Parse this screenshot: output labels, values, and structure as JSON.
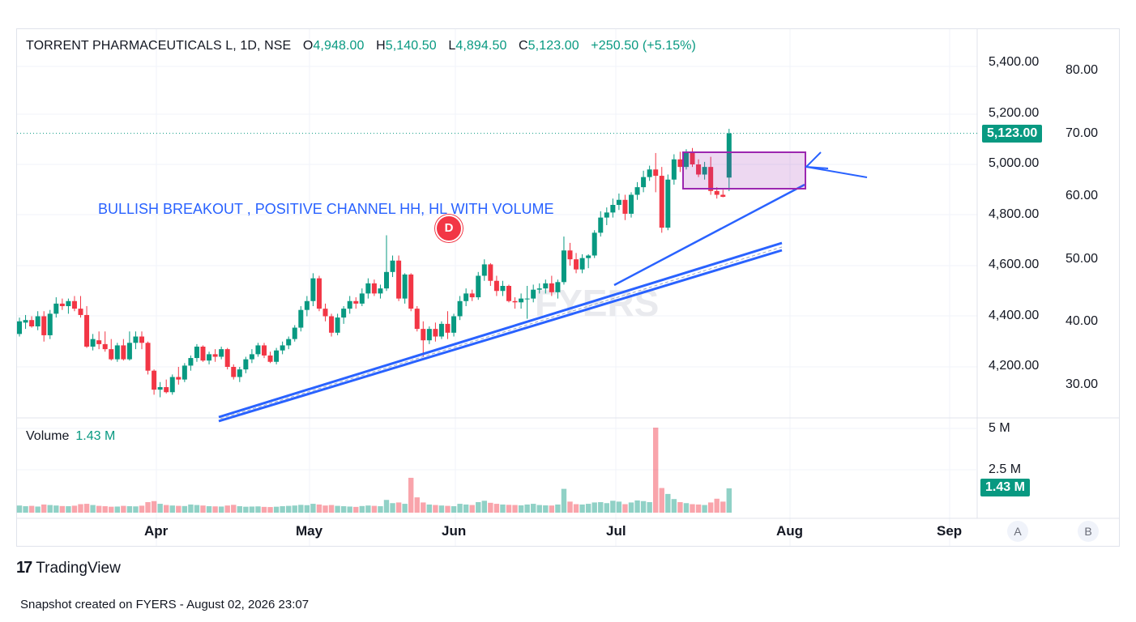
{
  "legend": {
    "symbol": "TORRENT PHARMACEUTICALS L, 1D, NSE",
    "open_label": "O",
    "open": "4,948.00",
    "high_label": "H",
    "high": "5,140.50",
    "low_label": "L",
    "low": "4,894.50",
    "close_label": "C",
    "close": "5,123.00",
    "change": "+250.50 (+5.15%)"
  },
  "volume_legend": {
    "label": "Volume",
    "value": "1.43 M"
  },
  "annotation": "BULLISH BREAKOUT , POSITIVE CHANNEL HH, HL WITH VOLUME",
  "marker": "D",
  "price_axis": [
    "5,400.00",
    "5,200.00",
    "5,000.00",
    "4,800.00",
    "4,600.00",
    "4,400.00",
    "4,200.00"
  ],
  "secondary_axis": [
    "80.00",
    "70.00",
    "60.00",
    "50.00",
    "40.00",
    "30.00"
  ],
  "volume_axis": [
    "5 M",
    "2.5 M"
  ],
  "last_price_tag": "5,123.00",
  "last_volume_tag": "1.43 M",
  "months": [
    "Apr",
    "May",
    "Jun",
    "Jul",
    "Aug",
    "Sep"
  ],
  "buttons": {
    "a": "A",
    "b": "B"
  },
  "watermark": "FYERS",
  "logo": {
    "mark": "17",
    "text": "TradingView"
  },
  "footer": "Snapshot created on FYERS - August 02, 2026 23:07",
  "colors": {
    "up": "#089981",
    "down": "#f23645",
    "drawing": "#2962ff",
    "box": "#9c27b0"
  },
  "chart_data": {
    "type": "candlestick",
    "title": "TORRENT PHARMACEUTICALS L, 1D, NSE",
    "ylim": [
      4130,
      5540
    ],
    "volume_ylim": [
      0,
      5400000
    ],
    "x_label_months": [
      "Apr",
      "May",
      "Jun",
      "Jul",
      "Aug",
      "Sep"
    ],
    "candles": [
      {
        "o": 4330,
        "h": 4395,
        "l": 4320,
        "c": 4380,
        "v": 420000
      },
      {
        "o": 4375,
        "h": 4405,
        "l": 4350,
        "c": 4385,
        "v": 380000
      },
      {
        "o": 4385,
        "h": 4400,
        "l": 4355,
        "c": 4360,
        "v": 400000
      },
      {
        "o": 4360,
        "h": 4420,
        "l": 4345,
        "c": 4400,
        "v": 360000
      },
      {
        "o": 4400,
        "h": 4420,
        "l": 4300,
        "c": 4325,
        "v": 480000
      },
      {
        "o": 4325,
        "h": 4425,
        "l": 4310,
        "c": 4410,
        "v": 450000
      },
      {
        "o": 4410,
        "h": 4475,
        "l": 4395,
        "c": 4450,
        "v": 420000
      },
      {
        "o": 4450,
        "h": 4470,
        "l": 4425,
        "c": 4440,
        "v": 390000
      },
      {
        "o": 4440,
        "h": 4470,
        "l": 4410,
        "c": 4460,
        "v": 380000
      },
      {
        "o": 4460,
        "h": 4480,
        "l": 4420,
        "c": 4430,
        "v": 410000
      },
      {
        "o": 4430,
        "h": 4480,
        "l": 4395,
        "c": 4405,
        "v": 500000
      },
      {
        "o": 4405,
        "h": 4440,
        "l": 4275,
        "c": 4280,
        "v": 520000
      },
      {
        "o": 4280,
        "h": 4330,
        "l": 4265,
        "c": 4310,
        "v": 450000
      },
      {
        "o": 4305,
        "h": 4340,
        "l": 4270,
        "c": 4290,
        "v": 400000
      },
      {
        "o": 4290,
        "h": 4340,
        "l": 4260,
        "c": 4270,
        "v": 380000
      },
      {
        "o": 4270,
        "h": 4310,
        "l": 4225,
        "c": 4230,
        "v": 350000
      },
      {
        "o": 4230,
        "h": 4295,
        "l": 4220,
        "c": 4285,
        "v": 360000
      },
      {
        "o": 4285,
        "h": 4310,
        "l": 4225,
        "c": 4230,
        "v": 400000
      },
      {
        "o": 4230,
        "h": 4340,
        "l": 4225,
        "c": 4295,
        "v": 380000
      },
      {
        "o": 4295,
        "h": 4340,
        "l": 4270,
        "c": 4320,
        "v": 370000
      },
      {
        "o": 4320,
        "h": 4340,
        "l": 4270,
        "c": 4295,
        "v": 410000
      },
      {
        "o": 4295,
        "h": 4300,
        "l": 4170,
        "c": 4185,
        "v": 620000
      },
      {
        "o": 4185,
        "h": 4190,
        "l": 4090,
        "c": 4110,
        "v": 680000
      },
      {
        "o": 4110,
        "h": 4140,
        "l": 4080,
        "c": 4120,
        "v": 520000
      },
      {
        "o": 4120,
        "h": 4150,
        "l": 4095,
        "c": 4100,
        "v": 450000
      },
      {
        "o": 4100,
        "h": 4170,
        "l": 4090,
        "c": 4160,
        "v": 420000
      },
      {
        "o": 4160,
        "h": 4200,
        "l": 4130,
        "c": 4150,
        "v": 400000
      },
      {
        "o": 4150,
        "h": 4215,
        "l": 4140,
        "c": 4205,
        "v": 390000
      },
      {
        "o": 4205,
        "h": 4245,
        "l": 4185,
        "c": 4235,
        "v": 480000
      },
      {
        "o": 4235,
        "h": 4290,
        "l": 4220,
        "c": 4280,
        "v": 450000
      },
      {
        "o": 4280,
        "h": 4285,
        "l": 4220,
        "c": 4225,
        "v": 420000
      },
      {
        "o": 4225,
        "h": 4260,
        "l": 4210,
        "c": 4250,
        "v": 380000
      },
      {
        "o": 4250,
        "h": 4270,
        "l": 4220,
        "c": 4240,
        "v": 370000
      },
      {
        "o": 4240,
        "h": 4280,
        "l": 4230,
        "c": 4270,
        "v": 360000
      },
      {
        "o": 4270,
        "h": 4275,
        "l": 4190,
        "c": 4200,
        "v": 420000
      },
      {
        "o": 4200,
        "h": 4210,
        "l": 4150,
        "c": 4160,
        "v": 460000
      },
      {
        "o": 4160,
        "h": 4200,
        "l": 4140,
        "c": 4190,
        "v": 380000
      },
      {
        "o": 4190,
        "h": 4240,
        "l": 4175,
        "c": 4230,
        "v": 350000
      },
      {
        "o": 4230,
        "h": 4270,
        "l": 4215,
        "c": 4250,
        "v": 360000
      },
      {
        "o": 4250,
        "h": 4295,
        "l": 4240,
        "c": 4285,
        "v": 370000
      },
      {
        "o": 4285,
        "h": 4295,
        "l": 4235,
        "c": 4245,
        "v": 340000
      },
      {
        "o": 4245,
        "h": 4260,
        "l": 4215,
        "c": 4220,
        "v": 330000
      },
      {
        "o": 4220,
        "h": 4275,
        "l": 4210,
        "c": 4265,
        "v": 350000
      },
      {
        "o": 4265,
        "h": 4300,
        "l": 4250,
        "c": 4285,
        "v": 380000
      },
      {
        "o": 4285,
        "h": 4320,
        "l": 4270,
        "c": 4310,
        "v": 400000
      },
      {
        "o": 4310,
        "h": 4365,
        "l": 4300,
        "c": 4355,
        "v": 420000
      },
      {
        "o": 4355,
        "h": 4440,
        "l": 4340,
        "c": 4425,
        "v": 460000
      },
      {
        "o": 4425,
        "h": 4480,
        "l": 4400,
        "c": 4460,
        "v": 440000
      },
      {
        "o": 4460,
        "h": 4570,
        "l": 4440,
        "c": 4550,
        "v": 520000
      },
      {
        "o": 4550,
        "h": 4560,
        "l": 4420,
        "c": 4430,
        "v": 480000
      },
      {
        "o": 4430,
        "h": 4450,
        "l": 4380,
        "c": 4400,
        "v": 420000
      },
      {
        "o": 4400,
        "h": 4410,
        "l": 4320,
        "c": 4335,
        "v": 450000
      },
      {
        "o": 4335,
        "h": 4410,
        "l": 4325,
        "c": 4395,
        "v": 400000
      },
      {
        "o": 4395,
        "h": 4440,
        "l": 4370,
        "c": 4430,
        "v": 380000
      },
      {
        "o": 4430,
        "h": 4480,
        "l": 4410,
        "c": 4460,
        "v": 360000
      },
      {
        "o": 4460,
        "h": 4475,
        "l": 4430,
        "c": 4450,
        "v": 340000
      },
      {
        "o": 4450,
        "h": 4510,
        "l": 4440,
        "c": 4490,
        "v": 390000
      },
      {
        "o": 4490,
        "h": 4550,
        "l": 4470,
        "c": 4530,
        "v": 420000
      },
      {
        "o": 4530,
        "h": 4545,
        "l": 4480,
        "c": 4490,
        "v": 400000
      },
      {
        "o": 4490,
        "h": 4525,
        "l": 4470,
        "c": 4510,
        "v": 380000
      },
      {
        "o": 4510,
        "h": 4720,
        "l": 4500,
        "c": 4575,
        "v": 750000
      },
      {
        "o": 4575,
        "h": 4640,
        "l": 4555,
        "c": 4620,
        "v": 560000
      },
      {
        "o": 4620,
        "h": 4640,
        "l": 4460,
        "c": 4470,
        "v": 600000
      },
      {
        "o": 4470,
        "h": 4570,
        "l": 4450,
        "c": 4565,
        "v": 520000
      },
      {
        "o": 4565,
        "h": 4570,
        "l": 4420,
        "c": 4430,
        "v": 2050000
      },
      {
        "o": 4430,
        "h": 4440,
        "l": 4340,
        "c": 4350,
        "v": 900000
      },
      {
        "o": 4350,
        "h": 4380,
        "l": 4240,
        "c": 4305,
        "v": 600000
      },
      {
        "o": 4305,
        "h": 4360,
        "l": 4290,
        "c": 4350,
        "v": 480000
      },
      {
        "o": 4350,
        "h": 4375,
        "l": 4300,
        "c": 4320,
        "v": 450000
      },
      {
        "o": 4320,
        "h": 4380,
        "l": 4310,
        "c": 4370,
        "v": 420000
      },
      {
        "o": 4370,
        "h": 4420,
        "l": 4310,
        "c": 4335,
        "v": 400000
      },
      {
        "o": 4335,
        "h": 4410,
        "l": 4320,
        "c": 4400,
        "v": 380000
      },
      {
        "o": 4400,
        "h": 4480,
        "l": 4385,
        "c": 4460,
        "v": 520000
      },
      {
        "o": 4460,
        "h": 4510,
        "l": 4440,
        "c": 4490,
        "v": 480000
      },
      {
        "o": 4490,
        "h": 4505,
        "l": 4460,
        "c": 4475,
        "v": 450000
      },
      {
        "o": 4475,
        "h": 4575,
        "l": 4465,
        "c": 4560,
        "v": 620000
      },
      {
        "o": 4560,
        "h": 4625,
        "l": 4540,
        "c": 4605,
        "v": 700000
      },
      {
        "o": 4605,
        "h": 4610,
        "l": 4520,
        "c": 4540,
        "v": 580000
      },
      {
        "o": 4540,
        "h": 4560,
        "l": 4480,
        "c": 4500,
        "v": 520000
      },
      {
        "o": 4500,
        "h": 4540,
        "l": 4480,
        "c": 4520,
        "v": 480000
      },
      {
        "o": 4520,
        "h": 4525,
        "l": 4455,
        "c": 4460,
        "v": 460000
      },
      {
        "o": 4460,
        "h": 4475,
        "l": 4430,
        "c": 4455,
        "v": 450000
      },
      {
        "o": 4455,
        "h": 4490,
        "l": 4430,
        "c": 4470,
        "v": 430000
      },
      {
        "o": 4470,
        "h": 4520,
        "l": 4390,
        "c": 4470,
        "v": 480000
      },
      {
        "o": 4470,
        "h": 4525,
        "l": 4455,
        "c": 4505,
        "v": 520000
      },
      {
        "o": 4505,
        "h": 4530,
        "l": 4490,
        "c": 4510,
        "v": 450000
      },
      {
        "o": 4510,
        "h": 4545,
        "l": 4490,
        "c": 4530,
        "v": 430000
      },
      {
        "o": 4530,
        "h": 4560,
        "l": 4480,
        "c": 4495,
        "v": 420000
      },
      {
        "o": 4495,
        "h": 4545,
        "l": 4470,
        "c": 4535,
        "v": 480000
      },
      {
        "o": 4535,
        "h": 4715,
        "l": 4525,
        "c": 4660,
        "v": 1400000
      },
      {
        "o": 4660,
        "h": 4690,
        "l": 4600,
        "c": 4625,
        "v": 650000
      },
      {
        "o": 4625,
        "h": 4650,
        "l": 4570,
        "c": 4585,
        "v": 500000
      },
      {
        "o": 4585,
        "h": 4645,
        "l": 4570,
        "c": 4630,
        "v": 480000
      },
      {
        "o": 4630,
        "h": 4645,
        "l": 4590,
        "c": 4640,
        "v": 520000
      },
      {
        "o": 4640,
        "h": 4740,
        "l": 4630,
        "c": 4730,
        "v": 600000
      },
      {
        "o": 4730,
        "h": 4815,
        "l": 4715,
        "c": 4790,
        "v": 620000
      },
      {
        "o": 4790,
        "h": 4830,
        "l": 4760,
        "c": 4810,
        "v": 560000
      },
      {
        "o": 4810,
        "h": 4865,
        "l": 4790,
        "c": 4840,
        "v": 700000
      },
      {
        "o": 4840,
        "h": 4885,
        "l": 4820,
        "c": 4860,
        "v": 650000
      },
      {
        "o": 4860,
        "h": 4880,
        "l": 4780,
        "c": 4805,
        "v": 500000
      },
      {
        "o": 4805,
        "h": 4890,
        "l": 4790,
        "c": 4880,
        "v": 600000
      },
      {
        "o": 4880,
        "h": 4930,
        "l": 4860,
        "c": 4910,
        "v": 720000
      },
      {
        "o": 4910,
        "h": 4975,
        "l": 4890,
        "c": 4950,
        "v": 680000
      },
      {
        "o": 4950,
        "h": 4995,
        "l": 4935,
        "c": 4980,
        "v": 620000
      },
      {
        "o": 4980,
        "h": 5045,
        "l": 4890,
        "c": 4955,
        "v": 5000000
      },
      {
        "o": 4955,
        "h": 4990,
        "l": 4730,
        "c": 4750,
        "v": 1450000
      },
      {
        "o": 4750,
        "h": 4960,
        "l": 4740,
        "c": 4940,
        "v": 1100000
      },
      {
        "o": 4940,
        "h": 5040,
        "l": 4920,
        "c": 5020,
        "v": 800000
      },
      {
        "o": 5020,
        "h": 5050,
        "l": 4970,
        "c": 4990,
        "v": 620000
      },
      {
        "o": 4990,
        "h": 5060,
        "l": 4980,
        "c": 5050,
        "v": 560000
      },
      {
        "o": 5050,
        "h": 5065,
        "l": 4990,
        "c": 5000,
        "v": 500000
      },
      {
        "o": 5000,
        "h": 5020,
        "l": 4950,
        "c": 4960,
        "v": 480000
      },
      {
        "o": 4960,
        "h": 5010,
        "l": 4940,
        "c": 4990,
        "v": 450000
      },
      {
        "o": 4990,
        "h": 5030,
        "l": 4880,
        "c": 4895,
        "v": 600000
      },
      {
        "o": 4895,
        "h": 4910,
        "l": 4865,
        "c": 4880,
        "v": 820000
      },
      {
        "o": 4880,
        "h": 4900,
        "l": 4870,
        "c": 4872,
        "v": 650000
      },
      {
        "o": 4948,
        "h": 5140.5,
        "l": 4894.5,
        "c": 5123,
        "v": 1430000
      }
    ]
  }
}
